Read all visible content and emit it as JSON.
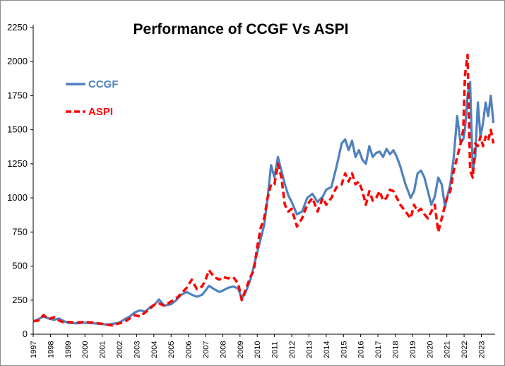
{
  "chart_data": {
    "type": "line",
    "title": "Performance of CCGF Vs ASPI",
    "xlabel": "",
    "ylabel": "",
    "ylim": [
      0,
      2250
    ],
    "y_ticks": [
      0,
      250,
      500,
      750,
      1000,
      1250,
      1500,
      1750,
      2000,
      2250
    ],
    "x_ticks": [
      "1997",
      "1998",
      "1999",
      "2000",
      "2001",
      "2002",
      "2003",
      "2004",
      "2005",
      "2006",
      "2007",
      "2008",
      "2009",
      "2010",
      "2011",
      "2012",
      "2013",
      "2014",
      "2015",
      "2016",
      "2017",
      "2018",
      "2019",
      "2020",
      "2021",
      "2022",
      "2023"
    ],
    "xlim": [
      1997,
      2023.8
    ],
    "grid": false,
    "legend_position": "upper-left",
    "series": [
      {
        "name": "CCGF",
        "color": "#4f81bd",
        "style": "solid",
        "x": [
          1997.0,
          1997.3,
          1997.6,
          1997.9,
          1998.2,
          1998.5,
          1998.8,
          1999.0,
          1999.5,
          2000.0,
          2000.5,
          2001.0,
          2001.3,
          2001.6,
          2002.0,
          2002.3,
          2002.6,
          2002.9,
          2003.2,
          2003.5,
          2003.8,
          2004.0,
          2004.3,
          2004.6,
          2005.0,
          2005.3,
          2005.6,
          2005.9,
          2006.2,
          2006.5,
          2006.8,
          2007.0,
          2007.2,
          2007.5,
          2007.8,
          2008.0,
          2008.3,
          2008.6,
          2008.9,
          2009.1,
          2009.3,
          2009.6,
          2009.8,
          2010.0,
          2010.2,
          2010.4,
          2010.6,
          2010.8,
          2011.0,
          2011.2,
          2011.4,
          2011.6,
          2011.8,
          2012.0,
          2012.3,
          2012.6,
          2012.9,
          2013.2,
          2013.5,
          2013.8,
          2014.0,
          2014.3,
          2014.6,
          2014.9,
          2015.1,
          2015.3,
          2015.5,
          2015.7,
          2015.9,
          2016.1,
          2016.3,
          2016.5,
          2016.7,
          2016.9,
          2017.1,
          2017.3,
          2017.5,
          2017.7,
          2017.9,
          2018.1,
          2018.3,
          2018.6,
          2018.9,
          2019.1,
          2019.3,
          2019.5,
          2019.7,
          2019.9,
          2020.1,
          2020.3,
          2020.5,
          2020.7,
          2020.9,
          2021.0,
          2021.2,
          2021.4,
          2021.6,
          2021.8,
          2021.95,
          2022.05,
          2022.2,
          2022.35,
          2022.5,
          2022.65,
          2022.8,
          2022.95,
          2023.1,
          2023.25,
          2023.4,
          2023.55,
          2023.7
        ],
        "values": [
          95,
          110,
          130,
          115,
          105,
          115,
          95,
          85,
          80,
          85,
          80,
          75,
          70,
          75,
          85,
          110,
          130,
          160,
          175,
          165,
          200,
          210,
          255,
          210,
          220,
          250,
          290,
          310,
          290,
          275,
          290,
          320,
          355,
          330,
          310,
          320,
          340,
          350,
          335,
          260,
          300,
          400,
          500,
          600,
          700,
          800,
          1000,
          1240,
          1150,
          1300,
          1200,
          1100,
          1020,
          970,
          880,
          900,
          1000,
          1030,
          970,
          1010,
          1060,
          1080,
          1230,
          1400,
          1430,
          1350,
          1420,
          1300,
          1350,
          1280,
          1250,
          1380,
          1300,
          1330,
          1340,
          1300,
          1360,
          1320,
          1350,
          1300,
          1230,
          1100,
          1000,
          1050,
          1180,
          1200,
          1150,
          1050,
          950,
          1010,
          1150,
          1100,
          930,
          1000,
          1100,
          1300,
          1600,
          1400,
          1430,
          1500,
          1750,
          1850,
          1200,
          1300,
          1700,
          1450,
          1550,
          1700,
          1600,
          1750,
          1550
        ]
      },
      {
        "name": "ASPI",
        "color": "#ff0000",
        "style": "dashed",
        "x": [
          1997.0,
          1997.3,
          1997.6,
          1997.9,
          1998.2,
          1998.5,
          1998.8,
          1999.0,
          1999.5,
          2000.0,
          2000.5,
          2001.0,
          2001.3,
          2001.6,
          2002.0,
          2002.3,
          2002.6,
          2002.9,
          2003.2,
          2003.5,
          2003.8,
          2004.0,
          2004.3,
          2004.6,
          2005.0,
          2005.3,
          2005.6,
          2005.9,
          2006.2,
          2006.5,
          2006.8,
          2007.0,
          2007.2,
          2007.5,
          2007.8,
          2008.0,
          2008.3,
          2008.6,
          2008.9,
          2009.1,
          2009.3,
          2009.6,
          2009.8,
          2010.0,
          2010.2,
          2010.4,
          2010.6,
          2010.8,
          2011.0,
          2011.2,
          2011.4,
          2011.6,
          2011.8,
          2012.0,
          2012.3,
          2012.6,
          2012.9,
          2013.2,
          2013.5,
          2013.8,
          2014.0,
          2014.3,
          2014.6,
          2014.9,
          2015.1,
          2015.3,
          2015.5,
          2015.7,
          2015.9,
          2016.1,
          2016.3,
          2016.5,
          2016.7,
          2016.9,
          2017.1,
          2017.3,
          2017.5,
          2017.7,
          2017.9,
          2018.1,
          2018.3,
          2018.6,
          2018.9,
          2019.1,
          2019.3,
          2019.5,
          2019.7,
          2019.9,
          2020.1,
          2020.3,
          2020.5,
          2020.7,
          2020.9,
          2021.0,
          2021.2,
          2021.4,
          2021.6,
          2021.8,
          2021.95,
          2022.05,
          2022.2,
          2022.35,
          2022.5,
          2022.65,
          2022.8,
          2022.95,
          2023.1,
          2023.25,
          2023.4,
          2023.55,
          2023.7
        ],
        "values": [
          95,
          100,
          140,
          110,
          125,
          100,
          85,
          90,
          85,
          90,
          85,
          75,
          70,
          65,
          80,
          90,
          115,
          140,
          130,
          160,
          190,
          215,
          225,
          210,
          240,
          260,
          300,
          340,
          400,
          330,
          350,
          400,
          470,
          420,
          400,
          420,
          410,
          420,
          370,
          250,
          320,
          420,
          470,
          640,
          780,
          850,
          1000,
          1100,
          1100,
          1250,
          1150,
          950,
          900,
          920,
          790,
          850,
          950,
          1000,
          900,
          1000,
          950,
          1000,
          1080,
          1100,
          1180,
          1120,
          1180,
          1100,
          1120,
          1050,
          950,
          1050,
          980,
          1000,
          1050,
          980,
          1000,
          1060,
          1050,
          1000,
          950,
          900,
          850,
          950,
          900,
          920,
          880,
          850,
          900,
          950,
          750,
          850,
          950,
          1000,
          1050,
          1200,
          1300,
          1400,
          1500,
          1900,
          2050,
          1200,
          1150,
          1400,
          1380,
          1450,
          1380,
          1450,
          1420,
          1500,
          1400
        ]
      }
    ]
  }
}
